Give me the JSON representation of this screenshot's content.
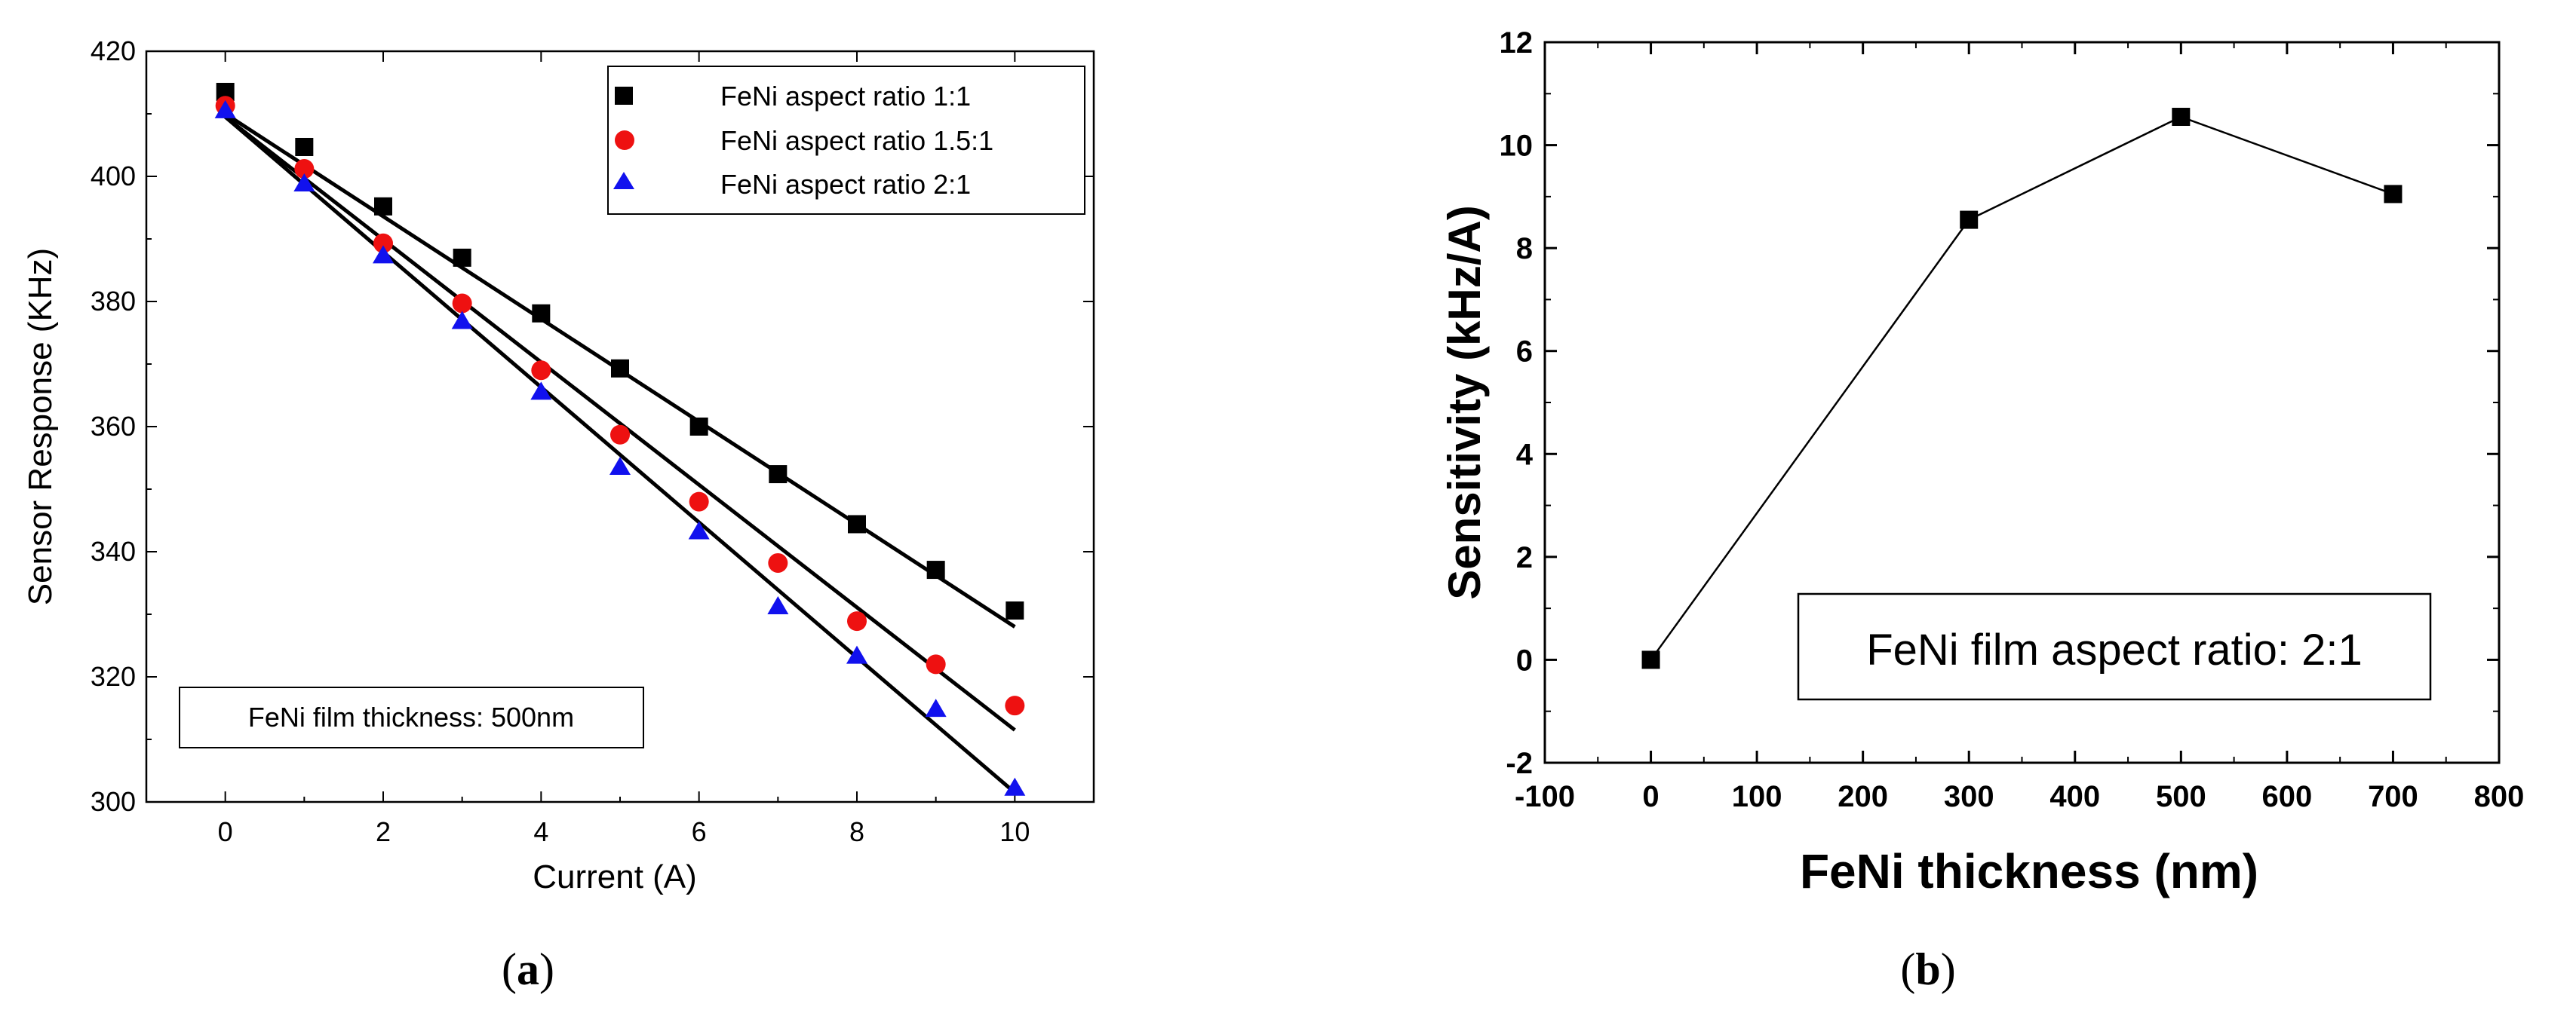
{
  "chart_data": [
    {
      "type": "scatter",
      "title": "",
      "xlabel": "Current (A)",
      "ylabel": "Sensor Response (KHz)",
      "xlim": [
        -1,
        11
      ],
      "ylim": [
        300,
        420
      ],
      "xticks": [
        "0",
        "2",
        "4",
        "6",
        "8",
        "10"
      ],
      "yticks": [
        "300",
        "320",
        "340",
        "360",
        "380",
        "400",
        "420"
      ],
      "legend_position": "top-right",
      "annotation": "FeNi film thickness: 500nm",
      "panel_label": "a",
      "series": [
        {
          "name": "FeNi aspect ratio 1:1",
          "marker": "square",
          "color": "#000000",
          "x": [
            0,
            1,
            2,
            3,
            4,
            5,
            6,
            7,
            8,
            9,
            10
          ],
          "values": [
            413.5,
            404.7,
            395.2,
            387,
            378.1,
            369.3,
            360,
            352.4,
            344.4,
            337.1,
            330.6
          ],
          "fit": [
            410,
            328
          ]
        },
        {
          "name": "FeNi aspect ratio 1.5:1",
          "marker": "circle",
          "color": "#ee1111",
          "x": [
            0,
            1,
            2,
            3,
            4,
            5,
            6,
            7,
            8,
            9,
            10
          ],
          "values": [
            411.3,
            401.2,
            389.3,
            379.7,
            369,
            358.7,
            348,
            338.2,
            328.9,
            322,
            315.4
          ],
          "fit": [
            409.5,
            311.5
          ]
        },
        {
          "name": "FeNi aspect ratio 2:1",
          "marker": "triangle",
          "color": "#1111ee",
          "x": [
            0,
            1,
            2,
            3,
            4,
            5,
            6,
            7,
            8,
            9,
            10
          ],
          "values": [
            410.5,
            398.8,
            387.3,
            376.8,
            365.5,
            353.5,
            343.2,
            331.2,
            323.3,
            314.8,
            302.2
          ],
          "fit": [
            409.5,
            301.5
          ]
        }
      ]
    },
    {
      "type": "line",
      "title": "",
      "xlabel": "FeNi thickness (nm)",
      "ylabel": "Sensitivity (kHz/A)",
      "xlim": [
        -100,
        800
      ],
      "ylim": [
        -2,
        12
      ],
      "xticks": [
        "-100",
        "0",
        "100",
        "200",
        "300",
        "400",
        "500",
        "600",
        "700",
        "800"
      ],
      "yticks": [
        "-2",
        "0",
        "2",
        "4",
        "6",
        "8",
        "10",
        "12"
      ],
      "annotation": "FeNi film aspect ratio: 2:1",
      "panel_label": "b",
      "series": [
        {
          "name": "Sensitivity",
          "marker": "square",
          "color": "#000000",
          "x": [
            0,
            300,
            500,
            700
          ],
          "values": [
            0,
            8.55,
            10.55,
            9.05
          ]
        }
      ]
    }
  ]
}
